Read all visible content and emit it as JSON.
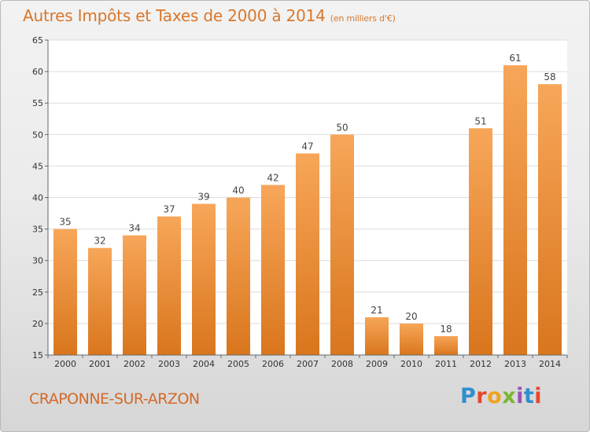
{
  "title": "Autres Impôts et Taxes de 2000 à 2014",
  "subtitle": "(en milliers d'€)",
  "commune": "CRAPONNE-SUR-ARZON",
  "brand": "Proxiti",
  "colors": {
    "title": "#d8772c",
    "bar_top": "#f7a659",
    "bar_bottom": "#d9761d",
    "commune": "#d36a2a"
  },
  "chart_data": {
    "type": "bar",
    "title": "Autres Impôts et Taxes de 2000 à 2014",
    "xlabel": "",
    "ylabel": "",
    "ylim": [
      15,
      65
    ],
    "yticks": [
      15,
      20,
      25,
      30,
      35,
      40,
      45,
      50,
      55,
      60,
      65
    ],
    "grid": true,
    "categories": [
      "2000",
      "2001",
      "2002",
      "2003",
      "2004",
      "2005",
      "2006",
      "2007",
      "2008",
      "2009",
      "2010",
      "2011",
      "2012",
      "2013",
      "2014"
    ],
    "values": [
      35,
      32,
      34,
      37,
      39,
      40,
      42,
      47,
      50,
      21,
      20,
      18,
      51,
      61,
      58
    ]
  }
}
